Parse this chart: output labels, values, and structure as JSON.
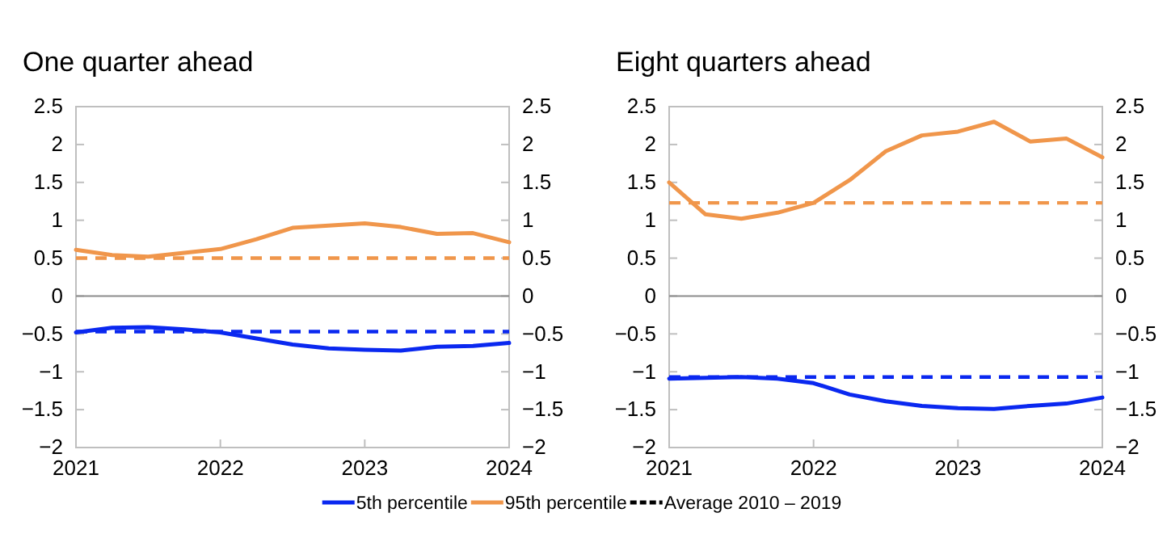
{
  "chart_data": [
    {
      "type": "line",
      "title": "One quarter ahead",
      "x": [
        2021,
        2021.25,
        2021.5,
        2021.75,
        2022,
        2022.25,
        2022.5,
        2022.75,
        2023,
        2023.25,
        2023.5,
        2023.75,
        2024
      ],
      "series": [
        {
          "name": "5th percentile",
          "color": "#0a28f0",
          "values": [
            -0.48,
            -0.42,
            -0.41,
            -0.44,
            -0.48,
            -0.56,
            -0.64,
            -0.69,
            -0.71,
            -0.72,
            -0.67,
            -0.66,
            -0.62
          ]
        },
        {
          "name": "95th percentile",
          "color": "#f0964b",
          "values": [
            0.61,
            0.54,
            0.52,
            0.57,
            0.62,
            0.75,
            0.9,
            0.93,
            0.96,
            0.91,
            0.82,
            0.83,
            0.71
          ]
        }
      ],
      "ref_lines": [
        {
          "axis": "y",
          "value": 0,
          "color": "#8c8c8c",
          "line_style": "solid"
        },
        {
          "axis": "y",
          "value": -0.47,
          "color": "#0a28f0",
          "line_style": "dashed"
        },
        {
          "axis": "y",
          "value": 0.5,
          "color": "#f0964b",
          "line_style": "dashed"
        }
      ],
      "annotations": [
        "Average 2010 – 2019"
      ],
      "xlim": [
        2021,
        2024
      ],
      "xticks": [
        2021,
        2022,
        2023,
        2024
      ],
      "ylim": [
        -2,
        2.5
      ],
      "yticks": [
        {
          "value": -2,
          "label": "−2"
        },
        {
          "value": -1.5,
          "label": "−1.5"
        },
        {
          "value": -1,
          "label": "−1"
        },
        {
          "value": -0.5,
          "label": "−0.5"
        },
        0,
        0.5,
        1,
        1.5,
        2,
        2.5
      ],
      "y2lim": [
        -2,
        2.5
      ],
      "y2ticks": [
        {
          "value": -2,
          "label": "−2"
        },
        {
          "value": -1.5,
          "label": "−1.5"
        },
        {
          "value": -1,
          "label": "−1"
        },
        {
          "value": -0.5,
          "label": "−0.5"
        },
        0,
        0.5,
        1,
        1.5,
        2,
        2.5
      ],
      "grid": false,
      "legend": "bottom",
      "line_style": "solid",
      "marker": "none"
    },
    {
      "type": "line",
      "title": "Eight quarters ahead",
      "x": [
        2021,
        2021.25,
        2021.5,
        2021.75,
        2022,
        2022.25,
        2022.5,
        2022.75,
        2023,
        2023.25,
        2023.5,
        2023.75,
        2024
      ],
      "series": [
        {
          "color": "#0a28f0",
          "values": [
            -1.09,
            -1.08,
            -1.07,
            -1.09,
            -1.15,
            -1.3,
            -1.39,
            -1.45,
            -1.48,
            -1.49,
            -1.45,
            -1.42,
            -1.34
          ]
        },
        {
          "color": "#f0964b",
          "values": [
            1.5,
            1.08,
            1.02,
            1.1,
            1.23,
            1.53,
            1.91,
            2.12,
            2.17,
            2.3,
            2.04,
            2.08,
            1.83
          ]
        }
      ],
      "ref_lines": [
        {
          "axis": "y",
          "value": 0,
          "color": "#8c8c8c",
          "line_style": "solid"
        },
        {
          "axis": "y",
          "value": -1.07,
          "color": "#0a28f0",
          "line_style": "dashed"
        },
        {
          "axis": "y",
          "value": 1.23,
          "color": "#f0964b",
          "line_style": "dashed"
        }
      ],
      "xlim": [
        2021,
        2024
      ],
      "xticks": [
        2021,
        2022,
        2023,
        2024
      ],
      "ylim": [
        -2,
        2.5
      ],
      "yticks": [
        {
          "value": -2,
          "label": "−2"
        },
        {
          "value": -1.5,
          "label": "−1.5"
        },
        {
          "value": -1,
          "label": "−1"
        },
        {
          "value": -0.5,
          "label": "−0.5"
        },
        0,
        0.5,
        1,
        1.5,
        2,
        2.5
      ],
      "y2lim": [
        -2,
        2.5
      ],
      "y2ticks": [
        {
          "value": -2,
          "label": "−2"
        },
        {
          "value": -1.5,
          "label": "−1.5"
        },
        {
          "value": -1,
          "label": "−1"
        },
        {
          "value": -0.5,
          "label": "−0.5"
        },
        0,
        0.5,
        1,
        1.5,
        2,
        2.5
      ],
      "grid": false,
      "line_style": "solid",
      "marker": "none"
    }
  ]
}
